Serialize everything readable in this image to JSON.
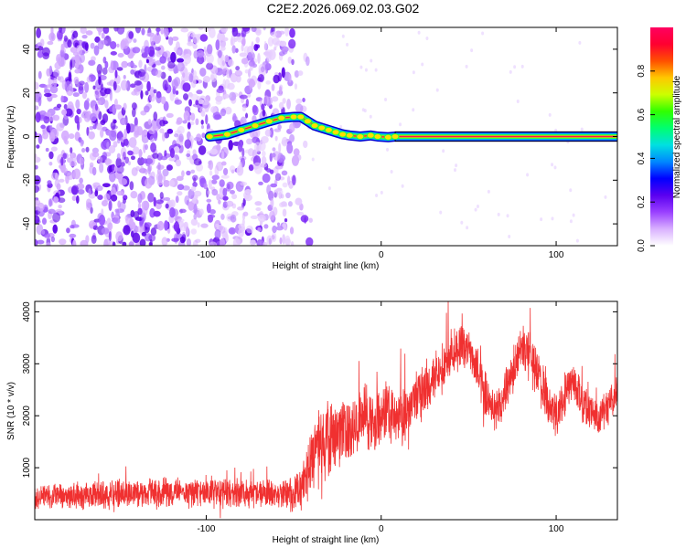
{
  "figure": {
    "title": "C2E2.2026.069.02.03.G02"
  },
  "chart_data": [
    {
      "type": "heatmap",
      "xlabel": "Height of straight line (km)",
      "ylabel": "Frequency (Hz)",
      "xlim": [
        -198,
        135
      ],
      "ylim": [
        -50,
        50
      ],
      "xticks": [
        -100,
        0,
        100
      ],
      "yticks": [
        -40,
        -20,
        0,
        20,
        40
      ],
      "grid": false,
      "colorbar": {
        "label": "Normalized spectral amplitude",
        "range": [
          0,
          1
        ],
        "ticks": [
          0.0,
          0.2,
          0.4,
          0.6,
          0.8
        ],
        "colors": [
          "#ffffff",
          "#d9b0ff",
          "#9a40ff",
          "#5a00f0",
          "#0000ff",
          "#0088ff",
          "#00e0e0",
          "#00ff70",
          "#30ff00",
          "#ccff00",
          "#ffc800",
          "#ff5000",
          "#ff0030",
          "#ff0060"
        ]
      },
      "tone_path": [
        [
          -98,
          0
        ],
        [
          -88,
          1
        ],
        [
          -80,
          3
        ],
        [
          -72,
          5
        ],
        [
          -64,
          7
        ],
        [
          -57,
          8.5
        ],
        [
          -50,
          9
        ],
        [
          -46,
          9
        ],
        [
          -42,
          7
        ],
        [
          -38,
          5
        ],
        [
          -34,
          4
        ],
        [
          -30,
          3
        ],
        [
          -26,
          2
        ],
        [
          -22,
          1
        ],
        [
          -18,
          0.5
        ],
        [
          -12,
          0
        ],
        [
          -6,
          0.5
        ],
        [
          -2,
          0
        ],
        [
          4,
          -0.3
        ],
        [
          8,
          0
        ],
        [
          135,
          0
        ]
      ]
    },
    {
      "type": "line",
      "xlabel": "Height of straight line (km)",
      "ylabel": "SNR (10 * v/v)",
      "xlim": [
        -198,
        135
      ],
      "ylim": [
        0,
        4200
      ],
      "xticks": [
        -100,
        0,
        100
      ],
      "yticks": [
        1000,
        2000,
        3000,
        4000
      ],
      "grid": false,
      "series": [
        {
          "color": "#f03030",
          "x": [
            -198,
            -180,
            -160,
            -140,
            -120,
            -100,
            -80,
            -60,
            -50,
            -45,
            -40,
            -35,
            -30,
            -25,
            -20,
            -15,
            -10,
            -5,
            0,
            5,
            10,
            15,
            20,
            25,
            30,
            35,
            40,
            45,
            50,
            55,
            60,
            65,
            70,
            75,
            80,
            85,
            90,
            95,
            100,
            105,
            110,
            115,
            120,
            125,
            130,
            135
          ],
          "y": [
            450,
            460,
            480,
            500,
            520,
            540,
            520,
            500,
            450,
            700,
            1150,
            1400,
            1550,
            1650,
            1750,
            1850,
            1950,
            1900,
            2000,
            2100,
            1950,
            2100,
            2300,
            2500,
            2750,
            2950,
            3200,
            3350,
            3300,
            2900,
            2350,
            2050,
            2350,
            2800,
            3350,
            3250,
            2750,
            2200,
            2050,
            2350,
            2700,
            2300,
            2050,
            2000,
            2200,
            2500
          ],
          "noise": [
            230,
            230,
            240,
            250,
            260,
            280,
            260,
            240,
            300,
            420,
            560,
            620,
            600,
            560,
            540,
            520,
            520,
            520,
            520,
            520,
            500,
            500,
            480,
            460,
            440,
            420,
            400,
            380,
            380,
            380,
            380,
            380,
            380,
            380,
            380,
            380,
            380,
            380,
            380,
            360,
            360,
            360,
            340,
            340,
            340,
            340
          ]
        }
      ]
    }
  ]
}
